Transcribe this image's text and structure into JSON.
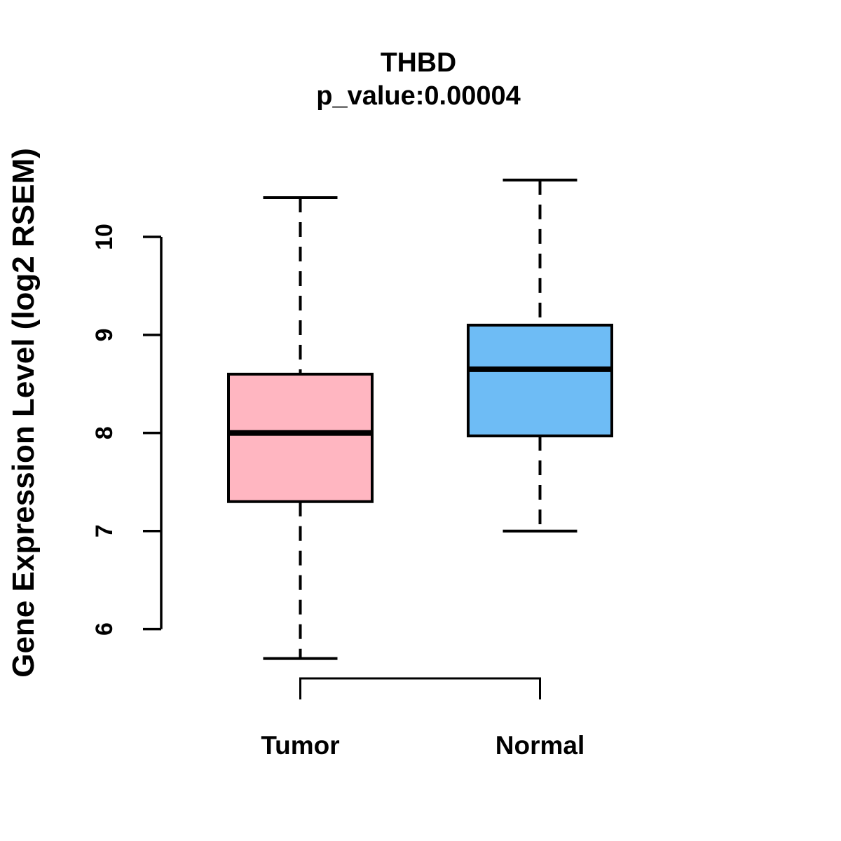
{
  "chart_data": {
    "type": "box",
    "title": "THBD",
    "subtitle": "p_value:0.00004",
    "ylabel": "Gene Expression Level (log2 RSEM)",
    "xlabel": "",
    "categories": [
      "Tumor",
      "Normal"
    ],
    "yticks": [
      6,
      7,
      8,
      9,
      10
    ],
    "ylim": [
      5.3,
      10.8
    ],
    "grid": false,
    "legend": false,
    "series": [
      {
        "name": "Tumor",
        "whisker_low": 5.7,
        "q1": 7.3,
        "median": 8.0,
        "q3": 8.6,
        "whisker_high": 10.4,
        "fill_color": "#FFB6C1",
        "border_color": "#000000"
      },
      {
        "name": "Normal",
        "whisker_low": 7.0,
        "q1": 7.97,
        "median": 8.65,
        "q3": 9.1,
        "whisker_high": 10.58,
        "fill_color": "#6EBCF5",
        "border_color": "#000000"
      }
    ],
    "comparison_bracket": {
      "between": [
        "Tumor",
        "Normal"
      ],
      "position": "below"
    }
  }
}
